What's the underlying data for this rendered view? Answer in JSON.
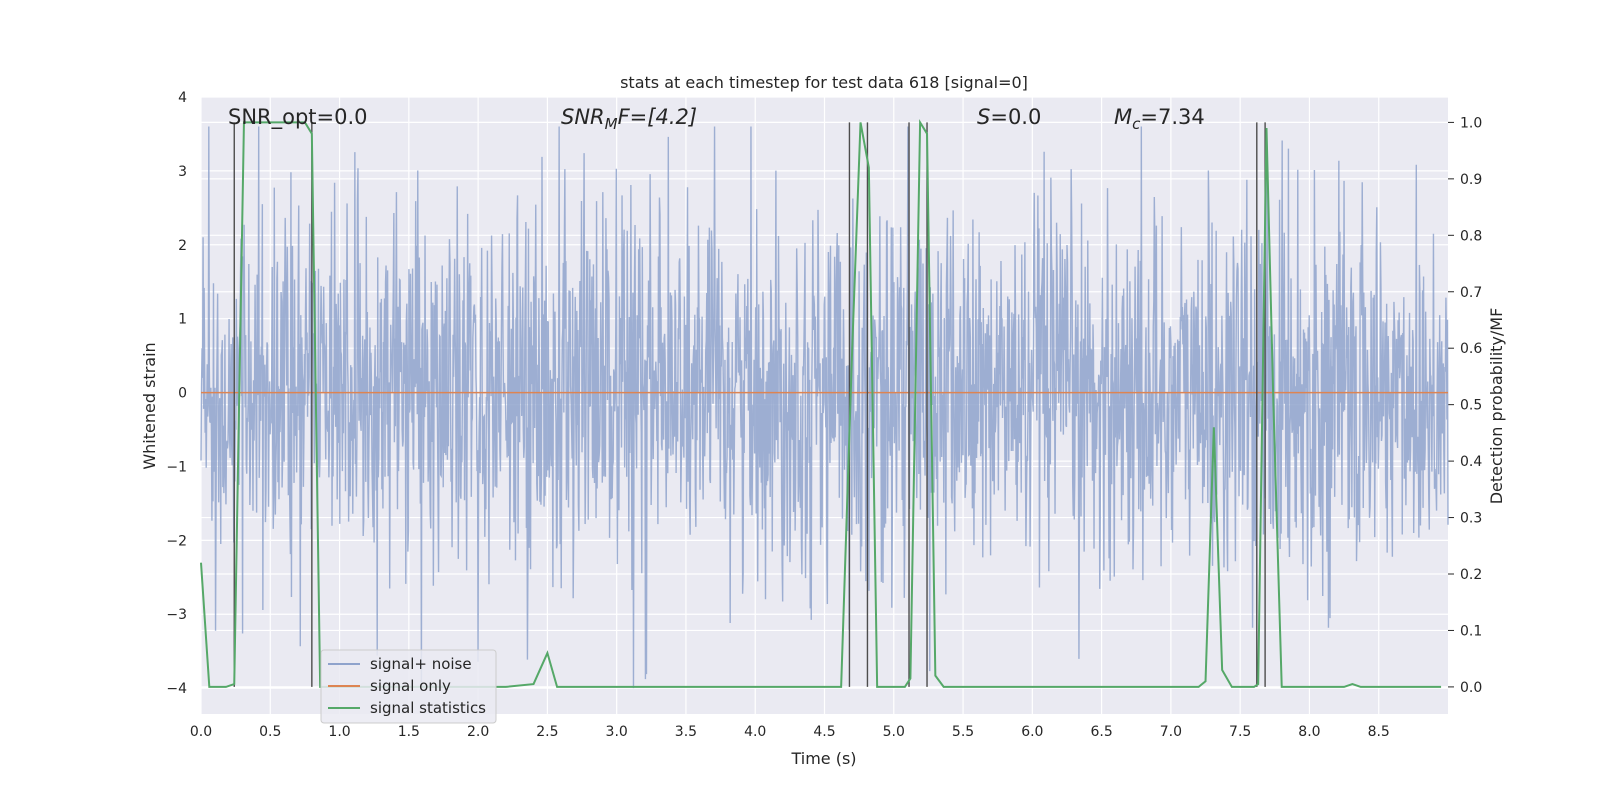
{
  "chart_data": {
    "type": "line",
    "title": "stats at each timestep for test data 618 [signal=0]",
    "xlabel": "Time (s)",
    "ylabel_left": "Whitened strain",
    "ylabel_right": "Detection probability/MF",
    "xlim": [
      0.0,
      9.0
    ],
    "ylim_left": [
      -4.35,
      4.0
    ],
    "ylim_right": [
      -0.048,
      1.045
    ],
    "xticks": [
      "0.0",
      "0.5",
      "1.0",
      "1.5",
      "2.0",
      "2.5",
      "3.0",
      "3.5",
      "4.0",
      "4.5",
      "5.0",
      "5.5",
      "6.0",
      "6.5",
      "7.0",
      "7.5",
      "8.0",
      "8.5"
    ],
    "yticks_left": [
      "4",
      "3",
      "2",
      "1",
      "0",
      "−1",
      "−2",
      "−3",
      "−4"
    ],
    "yticks_right": [
      "1.0",
      "0.9",
      "0.8",
      "0.7",
      "0.6",
      "0.5",
      "0.4",
      "0.3",
      "0.2",
      "0.1",
      "0.0"
    ],
    "annotations": {
      "snr_opt": "SNR_opt=0.0",
      "snr_mf_sym": "SNR",
      "snr_mf_sub": "M",
      "snr_mf_rest": "F=[4.2]",
      "s_sym": "S",
      "s_rest": "=0.0",
      "mc_sym": "M",
      "mc_sub": "c",
      "mc_rest": "=7.34"
    },
    "legend": {
      "position": "lower-left",
      "entries": [
        "signal+ noise",
        "signal only",
        "signal statistics"
      ]
    },
    "colors": {
      "noise": "#8fa3cc",
      "signal_only": "#dd8452",
      "statistics": "#55a868",
      "vlines": "#4d4d4d",
      "background": "#eaeaf2",
      "grid": "#ffffff"
    },
    "series": [
      {
        "name": "signal+ noise",
        "description_values": "noisy whitened strain, amplitude mostly within ±2.5, peaks near ±3.5",
        "amplitude_std": 1.2,
        "seed": 618
      },
      {
        "name": "signal only",
        "x": [
          0.0,
          9.0
        ],
        "y": [
          0.0,
          0.0
        ]
      },
      {
        "name": "signal statistics",
        "x": [
          0.0,
          0.06,
          0.18,
          0.24,
          0.31,
          0.45,
          0.55,
          0.75,
          0.8,
          0.86,
          1.0,
          2.2,
          2.4,
          2.5,
          2.57,
          4.62,
          4.7,
          4.76,
          4.82,
          4.88,
          5.08,
          5.12,
          5.19,
          5.24,
          5.3,
          5.36,
          7.2,
          7.25,
          7.31,
          7.37,
          7.44,
          7.6,
          7.63,
          7.69,
          7.74,
          7.8,
          8.25,
          8.31,
          8.37,
          8.95
        ],
        "y": [
          0.22,
          0.0,
          0.0,
          0.005,
          1.0,
          1.0,
          1.0,
          1.0,
          0.98,
          0.0,
          0.0,
          0.0,
          0.005,
          0.06,
          0.0,
          0.0,
          0.6,
          1.0,
          0.92,
          0.0,
          0.0,
          0.015,
          1.0,
          0.98,
          0.02,
          0.0,
          0.0,
          0.01,
          0.46,
          0.03,
          0.0,
          0.0,
          0.005,
          0.99,
          0.5,
          0.0,
          0.0,
          0.005,
          0.0,
          0.0
        ]
      }
    ],
    "vlines_x": [
      0.24,
      0.8,
      4.68,
      4.81,
      5.11,
      5.24,
      7.62,
      7.68
    ]
  }
}
